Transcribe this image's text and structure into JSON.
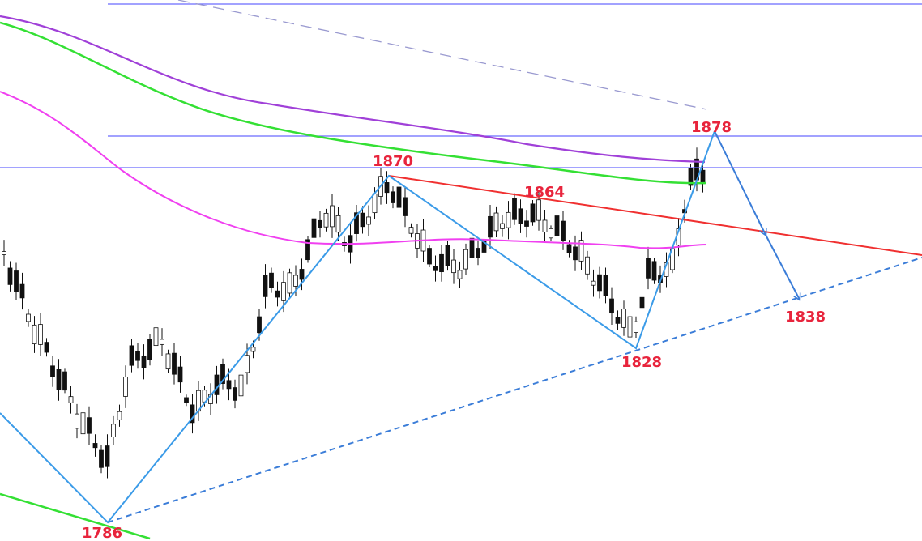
{
  "annotations": [
    {
      "label": "1870"
    },
    {
      "label": "1864"
    },
    {
      "label": "1878"
    },
    {
      "label": "1838"
    },
    {
      "label": "1828"
    },
    {
      "label": "1786"
    }
  ]
}
